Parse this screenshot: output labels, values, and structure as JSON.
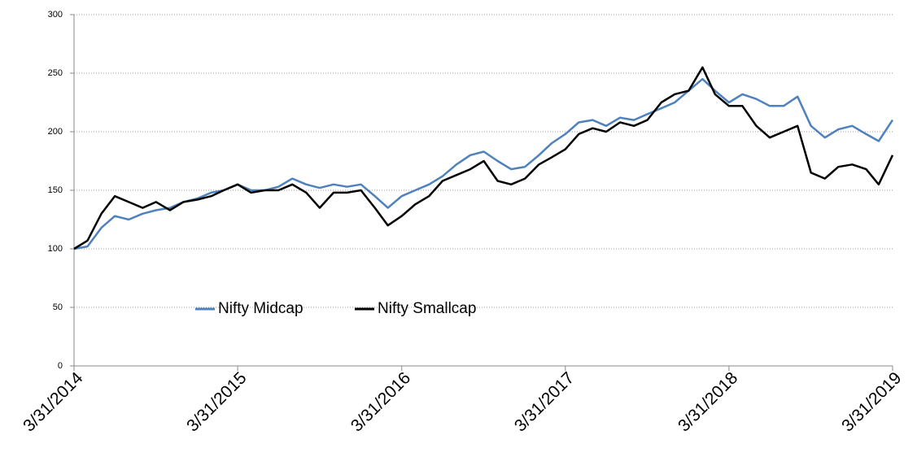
{
  "chart_data": {
    "type": "line",
    "x": [
      "3/31/2014",
      "4/30/2014",
      "5/31/2014",
      "6/30/2014",
      "7/31/2014",
      "8/31/2014",
      "9/30/2014",
      "10/31/2014",
      "11/30/2014",
      "12/31/2014",
      "1/31/2015",
      "2/28/2015",
      "3/31/2015",
      "4/30/2015",
      "5/31/2015",
      "6/30/2015",
      "7/31/2015",
      "8/31/2015",
      "9/30/2015",
      "10/31/2015",
      "11/30/2015",
      "12/31/2015",
      "1/31/2016",
      "2/29/2016",
      "3/31/2016",
      "4/30/2016",
      "5/31/2016",
      "6/30/2016",
      "7/31/2016",
      "8/31/2016",
      "9/30/2016",
      "10/31/2016",
      "11/30/2016",
      "12/31/2016",
      "1/31/2017",
      "2/28/2017",
      "3/31/2017",
      "4/30/2017",
      "5/31/2017",
      "6/30/2017",
      "7/31/2017",
      "8/31/2017",
      "9/30/2017",
      "10/31/2017",
      "11/30/2017",
      "12/31/2017",
      "1/31/2018",
      "2/28/2018",
      "3/31/2018",
      "4/30/2018",
      "5/31/2018",
      "6/30/2018",
      "7/31/2018",
      "8/31/2018",
      "9/30/2018",
      "10/31/2018",
      "11/30/2018",
      "12/31/2018",
      "1/31/2019",
      "2/28/2019",
      "3/31/2019"
    ],
    "series": [
      {
        "name": "Nifty Midcap",
        "color": "#4f81bd",
        "values": [
          100,
          102,
          118,
          128,
          125,
          130,
          133,
          135,
          140,
          143,
          148,
          150,
          155,
          150,
          150,
          153,
          160,
          155,
          152,
          155,
          153,
          155,
          145,
          135,
          145,
          150,
          155,
          162,
          172,
          180,
          183,
          175,
          168,
          170,
          180,
          190,
          198,
          208,
          210,
          205,
          212,
          210,
          215,
          220,
          225,
          235,
          245,
          235,
          225,
          232,
          228,
          222,
          222,
          230,
          205,
          195,
          202,
          205,
          198,
          192,
          210
        ]
      },
      {
        "name": "Nifty Smallcap",
        "color": "#000000",
        "values": [
          100,
          107,
          130,
          145,
          140,
          135,
          140,
          133,
          140,
          142,
          145,
          150,
          155,
          148,
          150,
          150,
          155,
          148,
          135,
          148,
          148,
          150,
          135,
          120,
          128,
          138,
          145,
          158,
          163,
          168,
          175,
          158,
          155,
          160,
          172,
          178,
          185,
          198,
          203,
          200,
          208,
          205,
          210,
          225,
          232,
          235,
          255,
          232,
          222,
          222,
          205,
          195,
          200,
          205,
          165,
          160,
          170,
          172,
          168,
          155,
          180
        ]
      }
    ],
    "xlim": [
      "3/31/2014",
      "3/31/2019"
    ],
    "xticks": [
      "3/31/2014",
      "3/31/2015",
      "3/31/2016",
      "3/31/2017",
      "3/31/2018",
      "3/31/2019"
    ],
    "ylim": [
      0,
      300
    ],
    "yticks": [
      0,
      50,
      100,
      150,
      200,
      250,
      300
    ],
    "grid": true
  }
}
